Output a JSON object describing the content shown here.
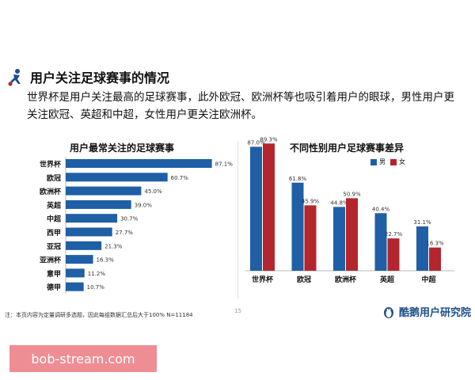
{
  "page": {
    "heading": "用户关注足球赛事的情况",
    "intro": "世界杯是用户关注最高的足球赛事，此外欧冠、欧洲杯等也吸引着用户的眼球，男性用户更关注欧冠、英超和中超，女性用户更关注欧洲杯。",
    "note": "注：本页内容为定量调研多选题，因此每组数据汇总后大于100%  N=11184",
    "page_number": "15",
    "brand": "酷鹅用户研究院",
    "watermark": "bob-stream.com"
  },
  "colors": {
    "blue": "#1f5fa6",
    "red": "#b3262e",
    "heading_icon": "#1f4e8c"
  },
  "chart_data": [
    {
      "type": "bar",
      "orientation": "horizontal",
      "title": "用户最常关注的足球赛事",
      "categories": [
        "世界杯",
        "欧冠",
        "欧洲杯",
        "英超",
        "中超",
        "西甲",
        "亚冠",
        "亚洲杯",
        "意甲",
        "德甲"
      ],
      "values": [
        87.1,
        60.7,
        45.0,
        39.0,
        30.7,
        27.7,
        21.3,
        16.3,
        11.2,
        10.7
      ],
      "labels": [
        "87.1%",
        "60.7%",
        "45.0%",
        "39.0%",
        "30.7%",
        "27.7%",
        "21.3%",
        "16.3%",
        "11.2%",
        "10.7%"
      ],
      "xlim": [
        0,
        100
      ],
      "grid": false
    },
    {
      "type": "bar",
      "title": "不同性别用户足球赛事差异",
      "categories": [
        "世界杯",
        "欧冠",
        "欧洲杯",
        "英超",
        "中超"
      ],
      "series": [
        {
          "name": "男",
          "values": [
            87.0,
            61.8,
            44.8,
            40.4,
            31.1
          ],
          "labels": [
            "87.0%",
            "61.8%",
            "44.8%",
            "40.4%",
            "31.1%"
          ]
        },
        {
          "name": "女",
          "values": [
            89.3,
            45.9,
            50.9,
            22.7,
            16.3
          ],
          "labels": [
            "89.3%",
            "45.9%",
            "50.9%",
            "22.7%",
            "16.3%"
          ]
        }
      ],
      "ylim": [
        0,
        100
      ],
      "legend": "top-right",
      "grid": false
    }
  ]
}
